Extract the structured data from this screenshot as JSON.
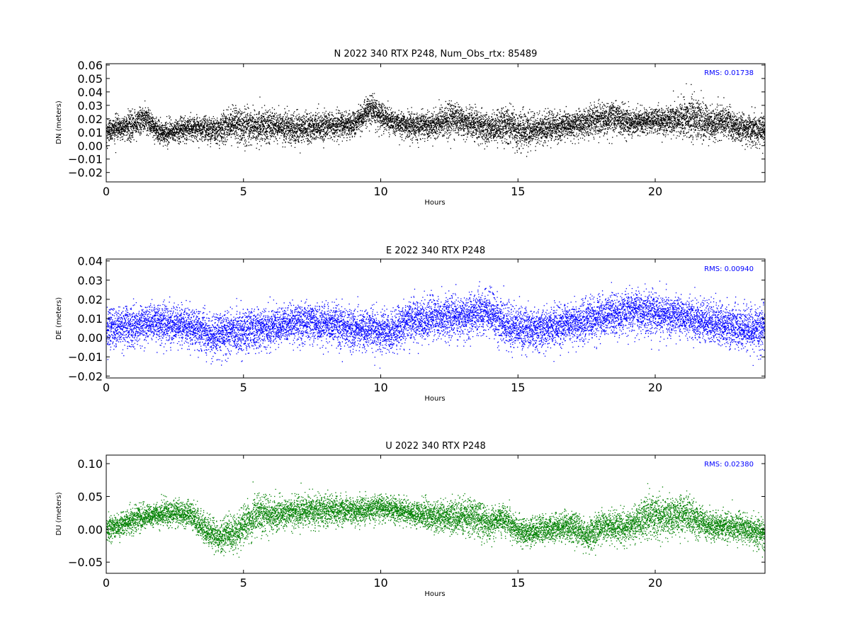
{
  "chart_data": [
    {
      "type": "scatter",
      "title": "N 2022 340 RTX  P248, Num_Obs_rtx: 85489",
      "xlabel": "Hours",
      "ylabel": "DN (meters)",
      "xlim": [
        0,
        24
      ],
      "ylim": [
        -0.027,
        0.061
      ],
      "x_ticks": [
        0,
        5,
        10,
        15,
        20
      ],
      "y_ticks": [
        -0.02,
        -0.01,
        0.0,
        0.01,
        0.02,
        0.03,
        0.04,
        0.05,
        0.06
      ],
      "y_tick_labels": [
        "−0.02",
        "−0.01",
        "0.00",
        "0.01",
        "0.02",
        "0.03",
        "0.04",
        "0.05",
        "0.06"
      ],
      "annotation": "RMS:  0.01738",
      "annotation_color": "#0000ff",
      "grid": false,
      "series": [
        {
          "color": "#000000",
          "x": [
            0,
            1,
            1.4,
            2,
            3,
            4,
            4.6,
            5.2,
            6,
            7,
            8,
            9,
            9.6,
            10.5,
            11,
            12,
            12.6,
            13,
            14,
            14.5,
            15.2,
            16,
            17,
            18,
            18.4,
            19,
            20,
            21,
            21.4,
            22,
            22.5,
            23,
            24
          ],
          "center": [
            0.012,
            0.016,
            0.02,
            0.009,
            0.014,
            0.012,
            0.016,
            0.014,
            0.015,
            0.013,
            0.015,
            0.016,
            0.027,
            0.017,
            0.015,
            0.016,
            0.021,
            0.018,
            0.013,
            0.016,
            0.012,
            0.013,
            0.016,
            0.019,
            0.021,
            0.018,
            0.019,
            0.02,
            0.022,
            0.016,
            0.019,
            0.013,
            0.012
          ],
          "spread": [
            0.01,
            0.01,
            0.011,
            0.009,
            0.01,
            0.011,
            0.014,
            0.014,
            0.012,
            0.013,
            0.011,
            0.01,
            0.011,
            0.01,
            0.01,
            0.011,
            0.014,
            0.011,
            0.012,
            0.015,
            0.014,
            0.012,
            0.011,
            0.012,
            0.014,
            0.011,
            0.01,
            0.014,
            0.018,
            0.012,
            0.012,
            0.011,
            0.012
          ]
        }
      ]
    },
    {
      "type": "scatter",
      "title": "E 2022 340 RTX  P248",
      "xlabel": "Hours",
      "ylabel": "DE (meters)",
      "xlim": [
        0,
        24
      ],
      "ylim": [
        -0.021,
        0.041
      ],
      "x_ticks": [
        0,
        5,
        10,
        15,
        20
      ],
      "y_ticks": [
        -0.02,
        -0.01,
        0.0,
        0.01,
        0.02,
        0.03,
        0.04
      ],
      "y_tick_labels": [
        "−0.02",
        "−0.01",
        "0.00",
        "0.01",
        "0.02",
        "0.03",
        "0.04"
      ],
      "annotation": "RMS:  0.00940",
      "annotation_color": "#0000ff",
      "grid": false,
      "series": [
        {
          "color": "#0000ff",
          "x": [
            0,
            1,
            2,
            3,
            3.8,
            4.5,
            5,
            6,
            7,
            8,
            9,
            10,
            10.4,
            11,
            12,
            13,
            13.8,
            14.5,
            15,
            16,
            17,
            18,
            19,
            20,
            21,
            22,
            23,
            24
          ],
          "center": [
            0.005,
            0.007,
            0.008,
            0.006,
            0.001,
            0.003,
            0.004,
            0.006,
            0.008,
            0.007,
            0.005,
            0.004,
            0.003,
            0.009,
            0.01,
            0.012,
            0.014,
            0.007,
            0.005,
            0.005,
            0.008,
            0.011,
            0.014,
            0.013,
            0.011,
            0.008,
            0.006,
            0.004
          ],
          "spread": [
            0.011,
            0.011,
            0.011,
            0.011,
            0.012,
            0.012,
            0.012,
            0.011,
            0.011,
            0.011,
            0.011,
            0.011,
            0.011,
            0.011,
            0.012,
            0.012,
            0.012,
            0.013,
            0.012,
            0.011,
            0.011,
            0.012,
            0.012,
            0.012,
            0.011,
            0.011,
            0.012,
            0.012
          ]
        }
      ]
    },
    {
      "type": "scatter",
      "title": "U 2022 340 RTX  P248",
      "xlabel": "Hours",
      "ylabel": "DU (meters)",
      "xlim": [
        0,
        24
      ],
      "ylim": [
        -0.067,
        0.113
      ],
      "x_ticks": [
        0,
        5,
        10,
        15,
        20
      ],
      "y_ticks": [
        -0.05,
        0.0,
        0.05,
        0.1
      ],
      "y_tick_labels": [
        "−0.05",
        "0.00",
        "0.05",
        "0.10"
      ],
      "annotation": "RMS:  0.02380",
      "annotation_color": "#0000ff",
      "grid": false,
      "series": [
        {
          "color": "#008000",
          "x": [
            0,
            1,
            2,
            3,
            3.5,
            4,
            4.7,
            5.5,
            6,
            7,
            8,
            9,
            10,
            11,
            12,
            13,
            13.5,
            14,
            14.5,
            15,
            16,
            17,
            17.5,
            18,
            19,
            19.8,
            20.5,
            21,
            22,
            23,
            24
          ],
          "center": [
            0.0,
            0.015,
            0.025,
            0.025,
            0.003,
            -0.01,
            -0.005,
            0.025,
            0.022,
            0.028,
            0.03,
            0.028,
            0.035,
            0.025,
            0.02,
            0.02,
            0.018,
            0.008,
            0.018,
            -0.005,
            0.0,
            0.005,
            -0.01,
            0.005,
            0.005,
            0.02,
            0.02,
            0.025,
            0.005,
            0.005,
            -0.01
          ],
          "spread": [
            0.02,
            0.02,
            0.02,
            0.02,
            0.025,
            0.025,
            0.03,
            0.032,
            0.025,
            0.025,
            0.025,
            0.022,
            0.022,
            0.02,
            0.025,
            0.03,
            0.03,
            0.025,
            0.025,
            0.022,
            0.022,
            0.025,
            0.028,
            0.025,
            0.025,
            0.032,
            0.035,
            0.03,
            0.025,
            0.025,
            0.025
          ]
        }
      ]
    }
  ]
}
